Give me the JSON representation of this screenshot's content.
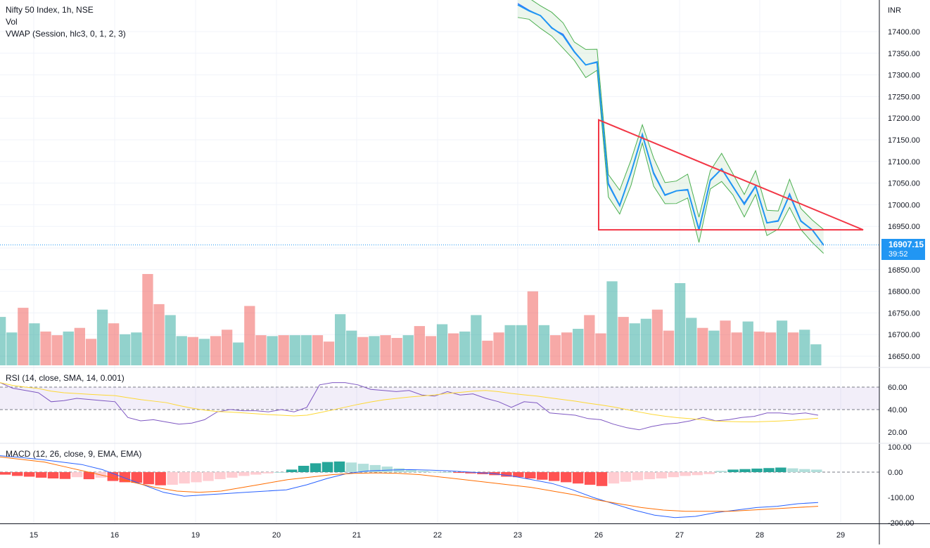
{
  "main_pane": {
    "title": "Nifty 50 Index, 1h, NSE",
    "vol_label": "Vol",
    "vwap_label": "VWAP (Session, hlc3, 0, 1, 2, 3)",
    "currency": "INR",
    "price_ticks": [
      "17400.00",
      "17350.00",
      "17300.00",
      "17250.00",
      "17200.00",
      "17150.00",
      "17100.00",
      "17050.00",
      "17000.00",
      "16950.00",
      "16900.00",
      "16850.00",
      "16800.00",
      "16750.00",
      "16700.00",
      "16650.00"
    ],
    "last_price": "16907.15",
    "countdown": "39:52"
  },
  "rsi_pane": {
    "label": "RSI (14, close, SMA, 14, 0.001)",
    "ticks": [
      "60.00",
      "40.00",
      "20.00"
    ]
  },
  "macd_pane": {
    "label": "MACD (12, 26, close, 9, EMA, EMA)",
    "ticks": [
      "100.00",
      "0.00",
      "-100.00",
      "-200.00"
    ]
  },
  "x_axis": {
    "ticks": [
      "15",
      "16",
      "19",
      "20",
      "21",
      "22",
      "23",
      "26",
      "27",
      "28",
      "29"
    ]
  },
  "colors": {
    "price": "#2196f3",
    "triangle": "#f23645",
    "vwap_band": "#4caf50",
    "vwap": "#2962ff",
    "vol_up": "#26a69a",
    "vol_down": "#ef5350",
    "rsi": "#7e57c2",
    "rsi_ma": "#fdd835",
    "macd": "#2962ff",
    "signal": "#ff6d00"
  },
  "chart_data": [
    {
      "type": "line",
      "series": [
        {
          "values": [
            17462,
            17448,
            17437,
            17409,
            17391,
            17353,
            17323,
            17330,
            17047,
            16998,
            17074,
            17162,
            17072,
            17022,
            17032,
            17035,
            16942,
            17056,
            17083,
            17042,
            17001,
            17043,
            16958,
            16963,
            17023,
            16962,
            16942,
            16907.15
          ]
        }
      ],
      "triangle": {
        "apex_price": 17196,
        "base_price": 16942,
        "right_price": 16942
      },
      "ylim": [
        16625,
        17475
      ]
    },
    {
      "type": "bar",
      "volume": [
        0.53,
        0.36,
        0.63,
        0.46,
        0.37,
        0.33,
        0.37,
        0.41,
        0.29,
        0.61,
        0.46,
        0.34,
        0.36,
        1.0,
        0.67,
        0.55,
        0.32,
        0.31,
        0.29,
        0.32,
        0.39,
        0.25,
        0.65,
        0.33,
        0.32,
        0.33,
        0.33,
        0.33,
        0.33,
        0.26,
        0.56,
        0.38,
        0.31,
        0.32,
        0.33,
        0.3,
        0.33,
        0.43,
        0.32,
        0.45,
        0.35,
        0.37,
        0.55,
        0.27,
        0.36,
        0.44,
        0.44,
        0.81,
        0.44,
        0.33,
        0.36,
        0.4,
        0.55,
        0.35,
        0.92,
        0.53,
        0.46,
        0.51,
        0.61,
        0.38,
        0.9,
        0.52,
        0.41,
        0.38,
        0.49,
        0.36,
        0.48,
        0.37,
        0.36,
        0.49,
        0.36,
        0.39,
        0.23
      ]
    },
    {
      "type": "line",
      "rsi": [
        64,
        59,
        57,
        55,
        47,
        48,
        50,
        49,
        48,
        47,
        33,
        30,
        31,
        29,
        27,
        28,
        31,
        38,
        40,
        39,
        39,
        38,
        40,
        38,
        42,
        62,
        64,
        64,
        62,
        58,
        57,
        56,
        57,
        53,
        52,
        56,
        53,
        54,
        50,
        47,
        42,
        47,
        46,
        37,
        36,
        35,
        32,
        31,
        27,
        24,
        22,
        25,
        27,
        28,
        30,
        33,
        30,
        31,
        33,
        34,
        37,
        37,
        36,
        37,
        35
      ],
      "ylim": [
        10,
        70
      ]
    },
    {
      "type": "bar",
      "macd_hist": [
        -10,
        -15,
        -18,
        -22,
        -25,
        -27,
        -20,
        -28,
        -22,
        -35,
        -40,
        -42,
        -48,
        -52,
        -50,
        -45,
        -40,
        -35,
        -28,
        -22,
        -15,
        -10,
        -5,
        0,
        10,
        25,
        35,
        40,
        42,
        38,
        33,
        28,
        22,
        15,
        10,
        5,
        2,
        0,
        -3,
        -5,
        -8,
        -12,
        -18,
        -20,
        -25,
        -30,
        -35,
        -40,
        -45,
        -50,
        -55,
        -45,
        -38,
        -32,
        -28,
        -25,
        -20,
        -15,
        -12,
        -8,
        5,
        10,
        12,
        14,
        16,
        18,
        15,
        12,
        10
      ],
      "macd_line": [
        65,
        58,
        50,
        40,
        30,
        10,
        -20,
        -50,
        -80,
        -95,
        -90,
        -85,
        -80,
        -75,
        -70,
        -50,
        -25,
        -5,
        5,
        8,
        10,
        8,
        5,
        0,
        -5,
        -15,
        -30,
        -45,
        -70,
        -100,
        -125,
        -150,
        -170,
        -180,
        -175,
        -160,
        -150,
        -140,
        -135,
        -125,
        -120
      ],
      "signal_line": [
        60,
        50,
        40,
        20,
        0,
        -20,
        -40,
        -60,
        -75,
        -80,
        -75,
        -60,
        -45,
        -30,
        -20,
        -10,
        -5,
        -3,
        -5,
        -10,
        -20,
        -30,
        -40,
        -50,
        -60,
        -75,
        -90,
        -110,
        -125,
        -140,
        -150,
        -155,
        -155,
        -155,
        -150,
        -145,
        -140,
        -135
      ],
      "ylim": [
        -200,
        100
      ]
    }
  ]
}
